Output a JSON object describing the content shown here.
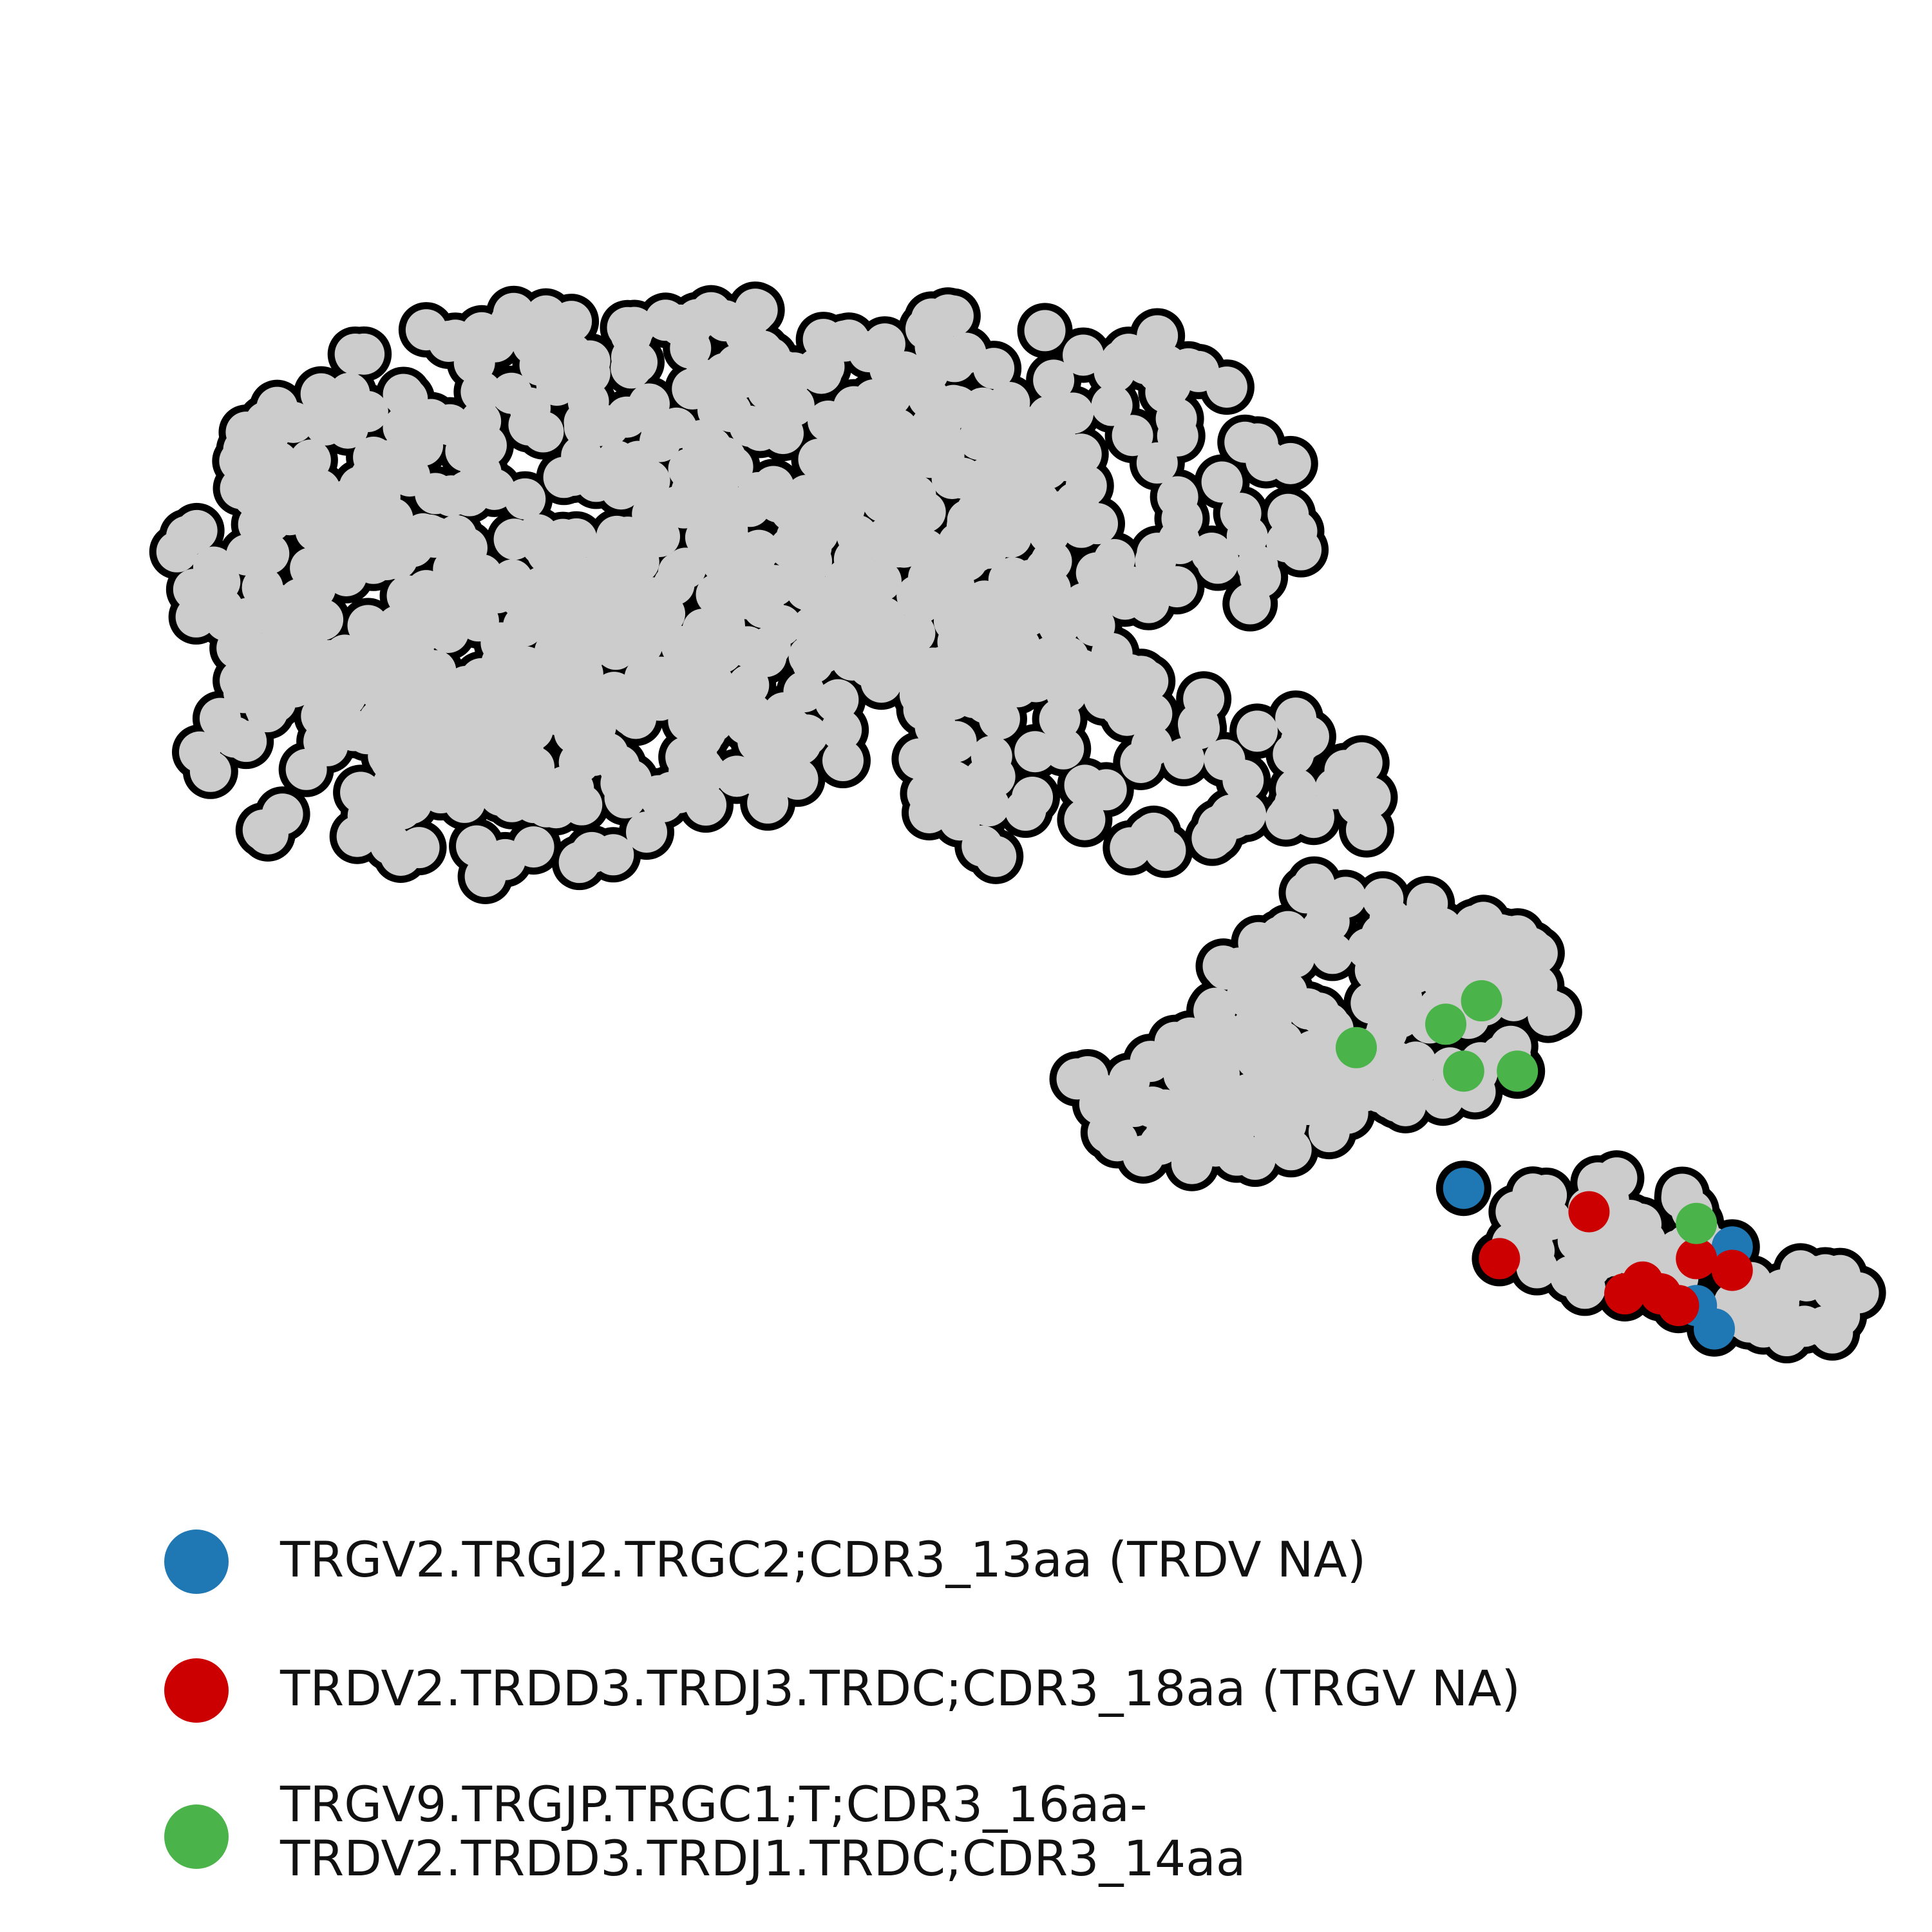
{
  "chart_data": {
    "type": "scatter",
    "title": "",
    "xlabel": "",
    "ylabel": "",
    "grid": false,
    "axes_visible": false,
    "legend_position": "bottom",
    "colors": {
      "background_points": "#cccccc",
      "outline": "#000000"
    },
    "legend": [
      {
        "label": "TRGV2.TRGJ2.TRGC2;CDR3_13aa (TRDV NA)",
        "color": "#1f77b4"
      },
      {
        "label": "TRDV2.TRDD3.TRDJ3.TRDC;CDR3_18aa (TRGV NA)",
        "color": "#cc0000"
      },
      {
        "label": "TRGV9.TRGJP.TRGC1;T;CDR3_16aa-\nTRDV2.TRDD3.TRDJ1.TRDC;CDR3_14aa",
        "color": "#4ab34a"
      }
    ],
    "background_series": {
      "name": "",
      "point_count": 1200,
      "density_regions": [
        {
          "x": [
            0.05,
            0.72
          ],
          "y": [
            0.35,
            0.78
          ],
          "weight": 0.48
        },
        {
          "x": [
            0.3,
            0.78
          ],
          "y": [
            0.62,
            0.92
          ],
          "weight": 0.24
        },
        {
          "x": [
            0.62,
            0.98
          ],
          "y": [
            0.05,
            0.45
          ],
          "weight": 0.14
        },
        {
          "x": [
            0.82,
            1.0
          ],
          "y": [
            0.0,
            0.22
          ],
          "weight": 0.1
        },
        {
          "x": [
            0.6,
            0.8
          ],
          "y": [
            0.35,
            0.62
          ],
          "weight": 0.04
        }
      ]
    },
    "series": [
      {
        "name": "TRGV2.TRGJ2.TRGC2;CDR3_13aa (TRDV NA)",
        "color": "#1f77b4",
        "points": [
          [
            0.76,
            0.14
          ],
          [
            0.91,
            0.09
          ],
          [
            0.89,
            0.04
          ],
          [
            0.9,
            0.02
          ]
        ]
      },
      {
        "name": "TRDV2.TRDD3.TRDJ3.TRDC;CDR3_18aa (TRGV NA)",
        "color": "#cc0000",
        "points": [
          [
            0.83,
            0.12
          ],
          [
            0.78,
            0.08
          ],
          [
            0.86,
            0.06
          ],
          [
            0.85,
            0.05
          ],
          [
            0.88,
            0.04
          ],
          [
            0.89,
            0.08
          ],
          [
            0.91,
            0.07
          ],
          [
            0.87,
            0.05
          ]
        ]
      },
      {
        "name": "TRGV9.TRGJP.TRGC1;T;CDR3_16aa-TRDV2.TRDD3.TRDJ1.TRDC;CDR3_14aa",
        "color": "#4ab34a",
        "points": [
          [
            0.7,
            0.26
          ],
          [
            0.75,
            0.28
          ],
          [
            0.77,
            0.3
          ],
          [
            0.76,
            0.24
          ],
          [
            0.79,
            0.24
          ],
          [
            0.89,
            0.11
          ]
        ]
      }
    ]
  }
}
